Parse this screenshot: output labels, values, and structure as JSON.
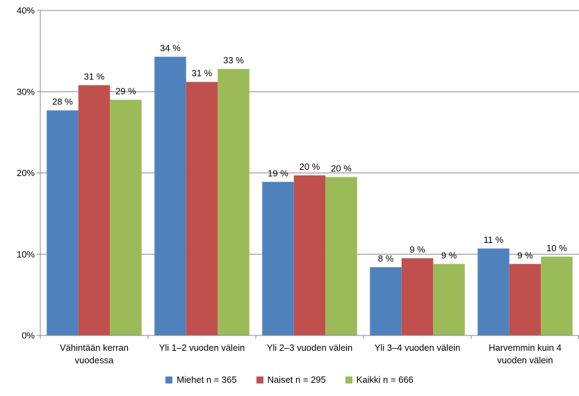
{
  "chart_data": {
    "type": "bar",
    "categories": [
      [
        "Vähintään kerran",
        "vuodessa"
      ],
      [
        "Yli 1–2 vuoden välein"
      ],
      [
        "Yli 2–3 vuoden välein"
      ],
      [
        "Yli 3–4 vuoden välein"
      ],
      [
        "Harvemmin kuin 4",
        "vuoden välein"
      ]
    ],
    "series": [
      {
        "name": "Miehet n = 365",
        "color": "#4f81bd",
        "values": [
          27.7,
          34.3,
          18.9,
          8.4,
          10.7
        ],
        "labels": [
          "28 %",
          "34 %",
          "19 %",
          "8 %",
          "11 %"
        ]
      },
      {
        "name": "Naiset n = 295",
        "color": "#c0504d",
        "values": [
          30.8,
          31.2,
          19.7,
          9.5,
          8.8
        ],
        "labels": [
          "31 %",
          "31 %",
          "20 %",
          "9 %",
          "9 %"
        ]
      },
      {
        "name": "Kaikki n = 666",
        "color": "#9bbb59",
        "values": [
          29.0,
          32.8,
          19.5,
          8.8,
          9.7
        ],
        "labels": [
          "29 %",
          "33 %",
          "20 %",
          "9 %",
          "10 %"
        ]
      }
    ],
    "yticks": [
      "0%",
      "10%",
      "20%",
      "30%",
      "40%"
    ],
    "ylim": [
      0,
      40
    ],
    "grid": true,
    "legend_position": "bottom",
    "title": "",
    "xlabel": "",
    "ylabel": ""
  }
}
